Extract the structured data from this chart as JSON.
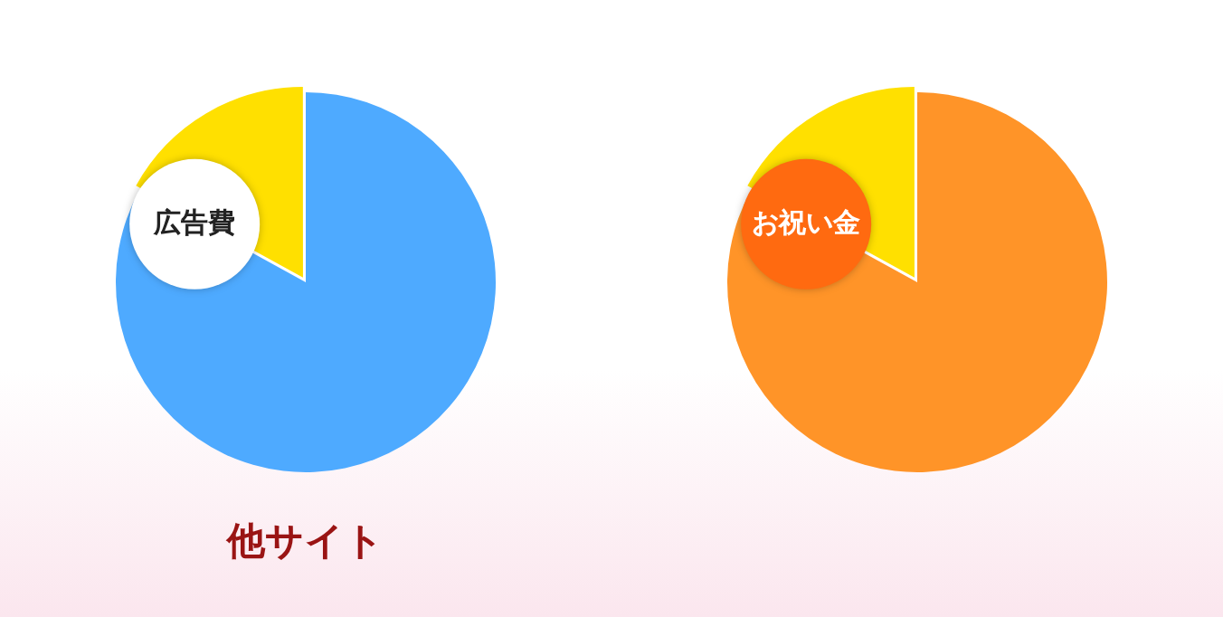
{
  "chart_data": [
    {
      "type": "pie",
      "title": "他サイト",
      "categories": [
        null,
        "広告費"
      ],
      "values": [
        83,
        17
      ],
      "colors": [
        "#4eaaff",
        "#ffe000"
      ],
      "legend": false
    },
    {
      "type": "pie",
      "categories": [
        null,
        "お祝い金"
      ],
      "values": [
        83,
        17
      ],
      "colors": [
        "#ff9428",
        "#ffe000"
      ],
      "legend": false
    }
  ]
}
